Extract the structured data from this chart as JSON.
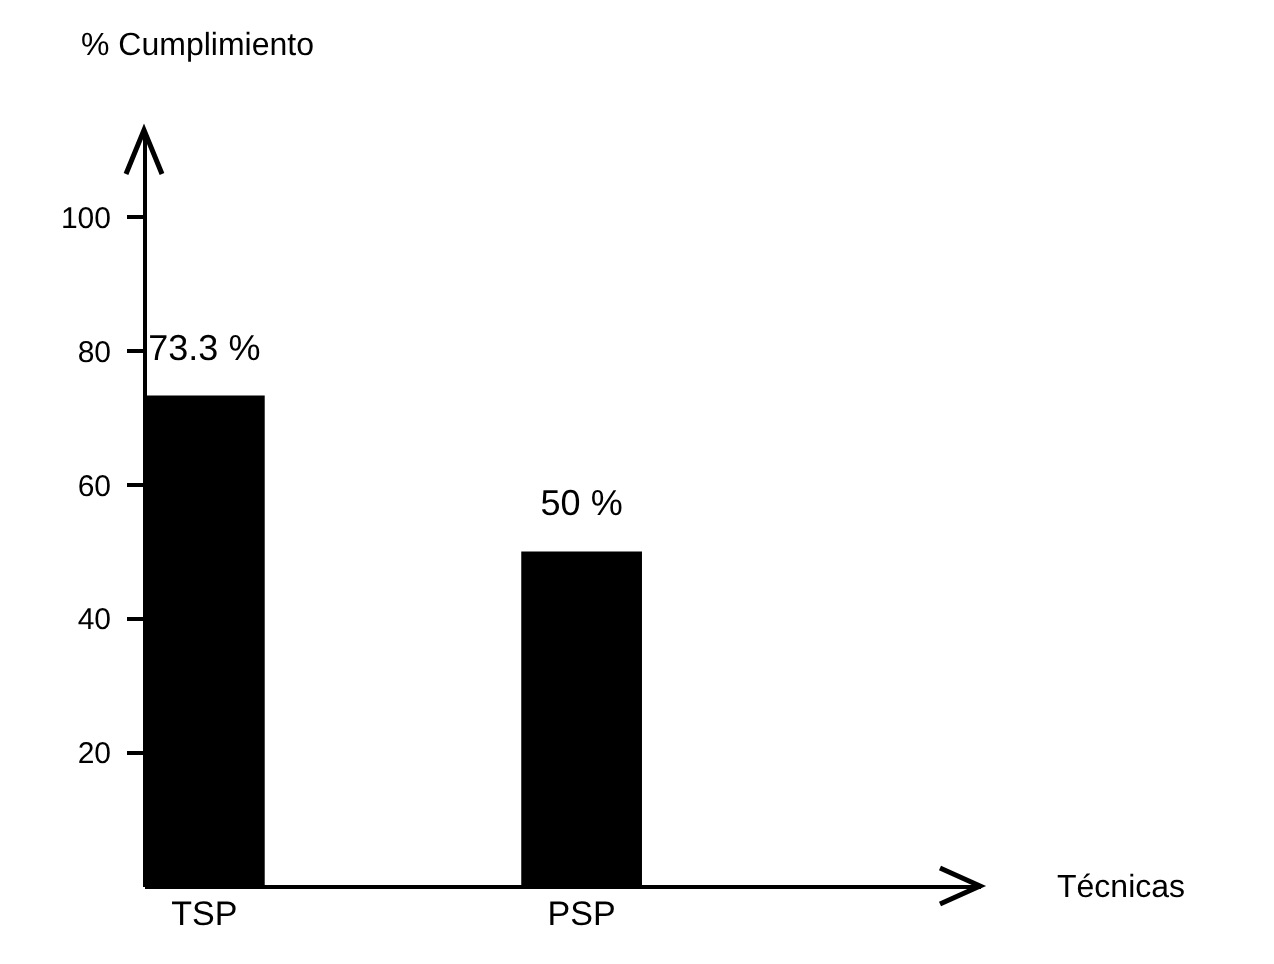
{
  "chart_data": {
    "type": "bar",
    "ylabel": "% Cumplimiento",
    "xlabel": "Técnicas",
    "categories": [
      "TSP",
      "PSP"
    ],
    "values": [
      73.3,
      50
    ],
    "color": "#000000",
    "value_labels": [
      "73.3 %",
      "50 %"
    ],
    "ylim": [
      0,
      113
    ],
    "yticks": [
      20,
      40,
      60,
      80,
      100
    ],
    "grid": false
  }
}
